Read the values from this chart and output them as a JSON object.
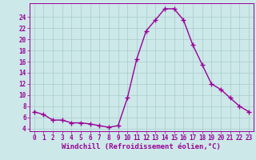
{
  "x": [
    0,
    1,
    2,
    3,
    4,
    5,
    6,
    7,
    8,
    9,
    10,
    11,
    12,
    13,
    14,
    15,
    16,
    17,
    18,
    19,
    20,
    21,
    22,
    23
  ],
  "y": [
    7.0,
    6.5,
    5.5,
    5.5,
    5.0,
    5.0,
    4.8,
    4.5,
    4.2,
    4.5,
    9.5,
    16.5,
    21.5,
    23.5,
    25.5,
    25.5,
    23.5,
    19.0,
    15.5,
    12.0,
    11.0,
    9.5,
    8.0,
    7.0
  ],
  "line_color": "#990099",
  "marker": "+",
  "marker_size": 4,
  "marker_linewidth": 1.0,
  "line_width": 1.0,
  "background_color": "#cce8e8",
  "grid_color": "#aacccc",
  "xlabel": "Windchill (Refroidissement éolien,°C)",
  "xlabel_color": "#990099",
  "ylabel_ticks": [
    4,
    6,
    8,
    10,
    12,
    14,
    16,
    18,
    20,
    22,
    24
  ],
  "xlim": [
    -0.5,
    23.5
  ],
  "ylim": [
    3.5,
    26.5
  ],
  "tick_color": "#990099",
  "tick_fontsize": 5.5,
  "xlabel_fontsize": 6.5
}
